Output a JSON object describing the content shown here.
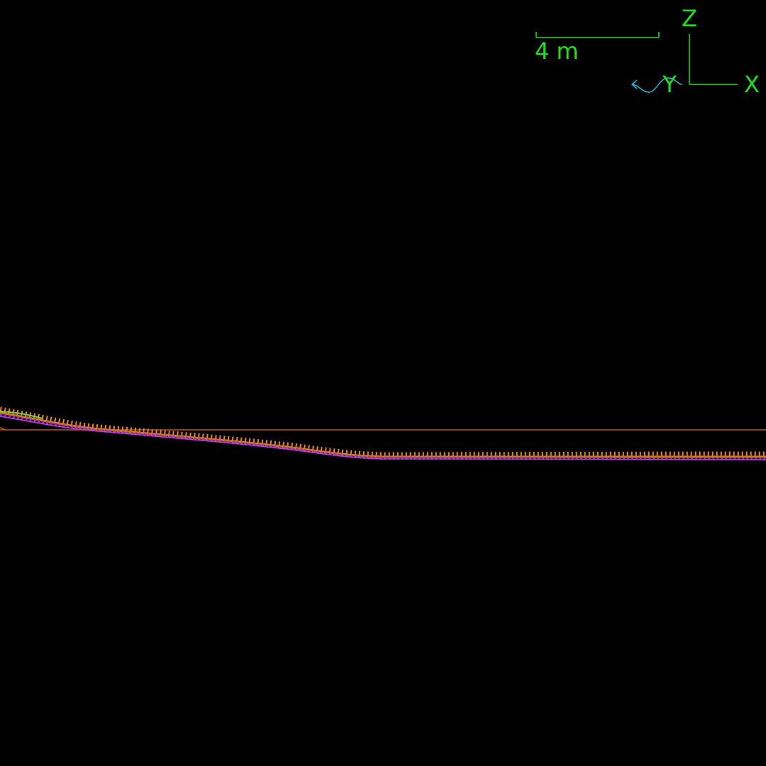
{
  "scale_bar": {
    "label": "4 m"
  },
  "axes": {
    "z_label": "Z",
    "x_label": "X",
    "y_label": "Y"
  }
}
